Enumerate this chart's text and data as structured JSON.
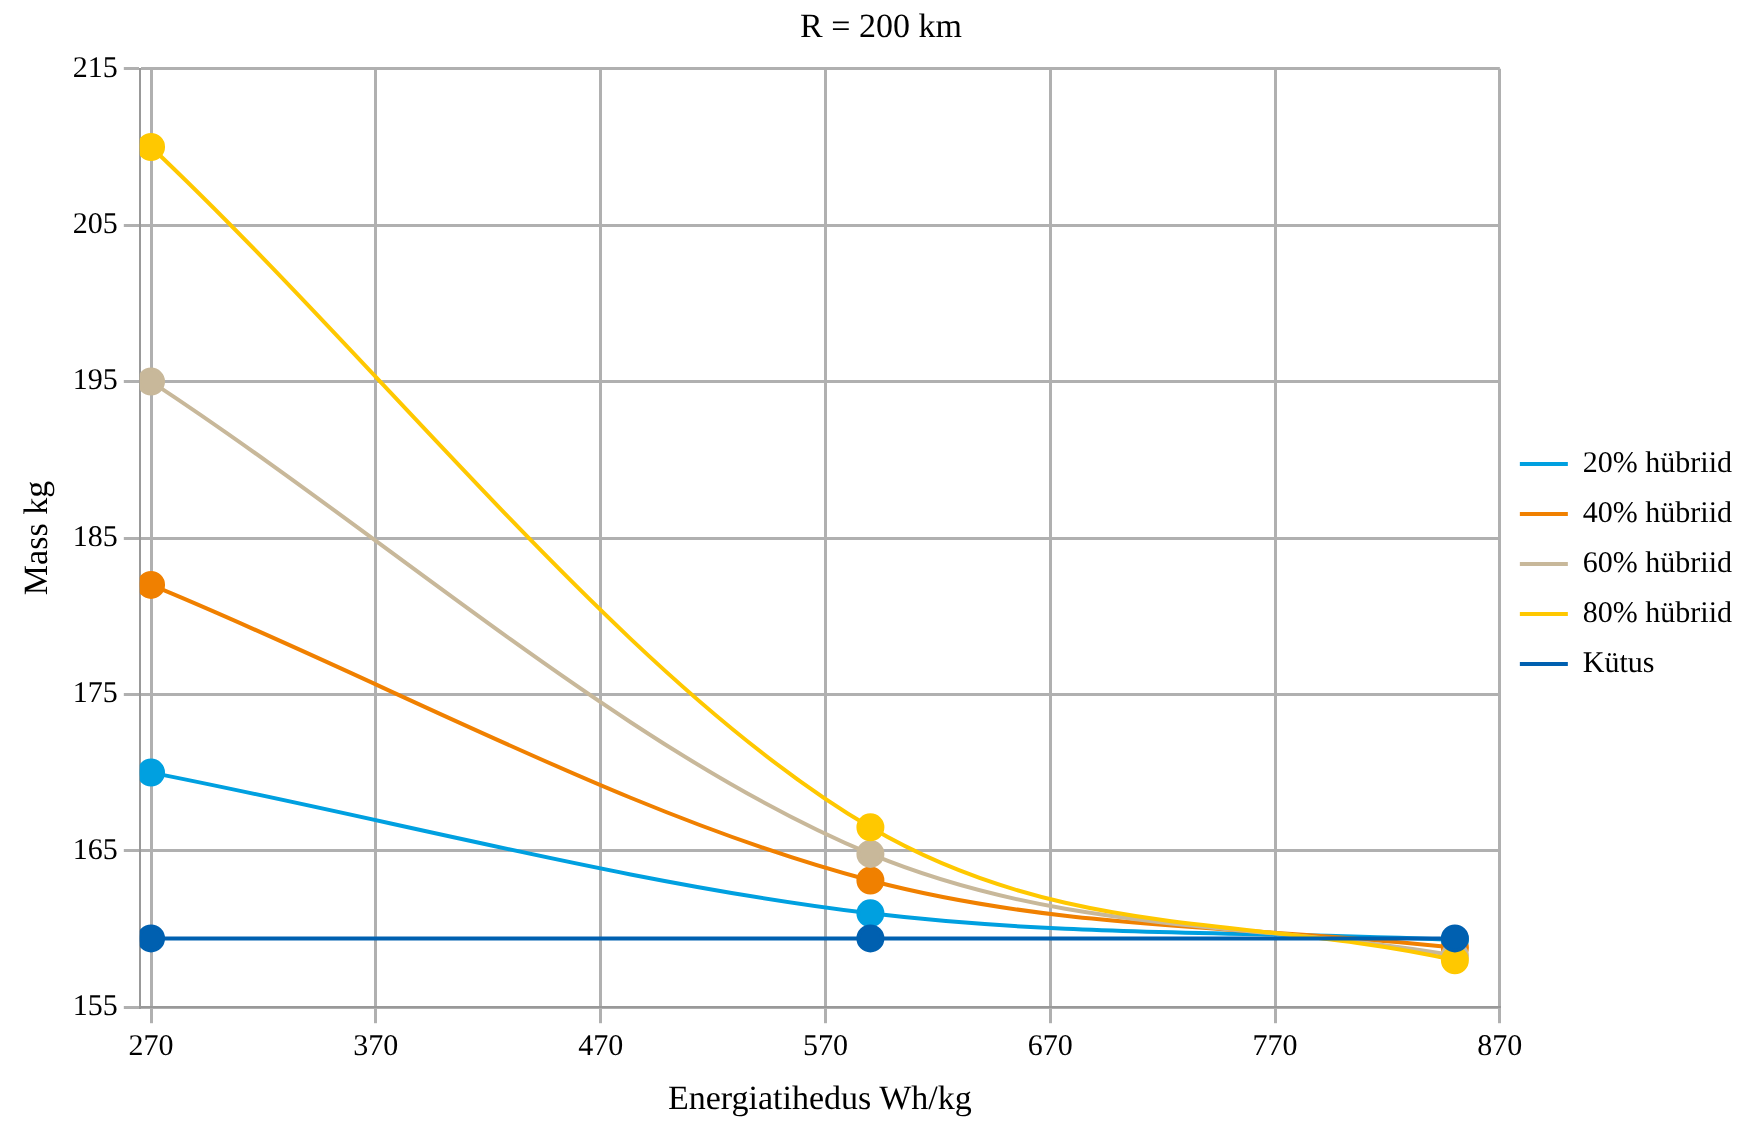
{
  "chart_data": {
    "type": "line",
    "title": "R = 200 km",
    "xlabel": "Energiatihedus Wh/kg",
    "ylabel": "Mass kg",
    "x": [
      270,
      590,
      850
    ],
    "series": [
      {
        "name": "20% hübriid",
        "color": "#00a0e0",
        "values": [
          170,
          161,
          159.3
        ]
      },
      {
        "name": "40% hübriid",
        "color": "#f08000",
        "values": [
          182,
          163.1,
          158.8
        ]
      },
      {
        "name": "60% hübriid",
        "color": "#c8b89a",
        "values": [
          195,
          164.8,
          158.3
        ]
      },
      {
        "name": "80% hübriid",
        "color": "#ffc800",
        "values": [
          210,
          166.5,
          158
        ]
      },
      {
        "name": "Kütus",
        "color": "#0060b0",
        "values": [
          159.4,
          159.4,
          159.4
        ]
      }
    ],
    "xlim": [
      265,
      870
    ],
    "xticks": [
      270,
      370,
      470,
      570,
      670,
      770,
      870
    ],
    "ylim": [
      155,
      215
    ],
    "yticks": [
      155,
      165,
      175,
      185,
      195,
      205,
      215
    ],
    "grid": true,
    "legend": "right",
    "marker": "circle",
    "line_style": "solid"
  }
}
